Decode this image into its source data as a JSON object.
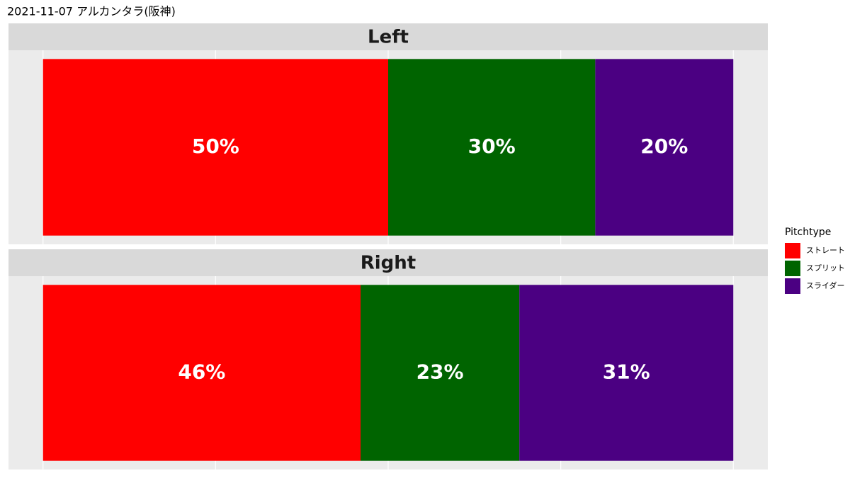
{
  "chart_data": {
    "type": "bar",
    "title": "2021-11-07 アルカンタラ(阪神)",
    "orientation": "horizontal",
    "stacked": true,
    "categories": [
      "Left",
      "Right"
    ],
    "legend_title": "Pitchtype",
    "series": [
      {
        "name": "ストレート",
        "color": "#ff0000",
        "values": [
          50,
          46
        ],
        "value_labels": [
          "50%",
          "46%"
        ]
      },
      {
        "name": "スプリット",
        "color": "#006400",
        "values": [
          30,
          23
        ],
        "value_labels": [
          "30%",
          "23%"
        ]
      },
      {
        "name": "スライダー",
        "color": "#4b0082",
        "values": [
          20,
          31
        ],
        "value_labels": [
          "20%",
          "31%"
        ]
      }
    ],
    "xlim": [
      -5,
      105
    ],
    "xticks": [
      0,
      25,
      50,
      75,
      100
    ],
    "grid": true,
    "legend": "right"
  }
}
